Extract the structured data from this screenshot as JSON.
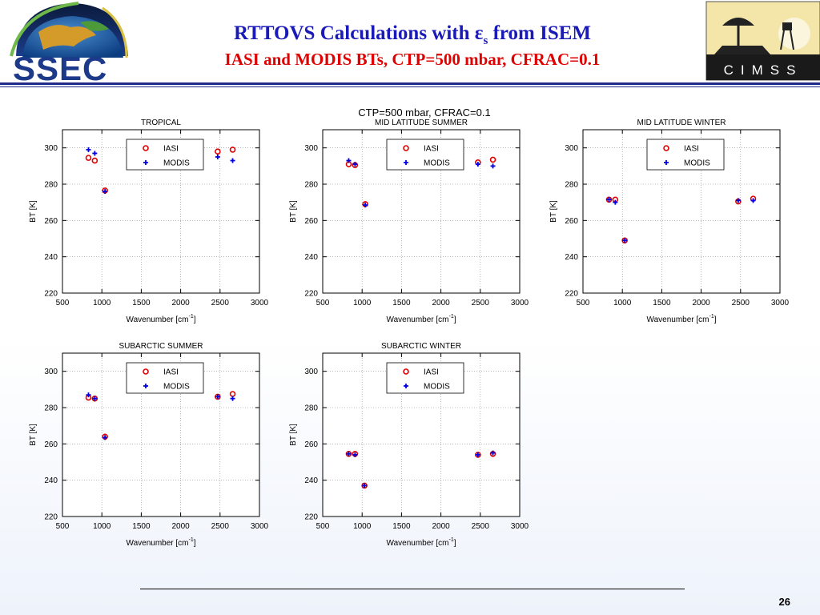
{
  "header": {
    "title_prefix": "RTTOVS Calculations with ",
    "title_eps": "ε",
    "title_eps_sub": "s",
    "title_suffix": " from ISEM",
    "subtitle": "IASI and MODIS BTs, CTP=500 mbar, CFRAC=0.1",
    "logo_left_text": "SSEC",
    "logo_right_text": "CIMSS"
  },
  "overall_title": "CTP=500 mbar, CFRAC=0.1",
  "page_number": "26",
  "colors": {
    "iasi": "#e00000",
    "modis": "#0000e0",
    "title_blue": "#1a1ab8",
    "title_red": "#e00000"
  },
  "chart_data": [
    {
      "type": "scatter",
      "title": "TROPICAL",
      "xlabel": "Wavenumber [cm",
      "xlabel_sup": "-1",
      "xlabel_end": "]",
      "ylabel": "BT [K]",
      "xlim": [
        500,
        3000
      ],
      "ylim": [
        220,
        310
      ],
      "xticks": [
        500,
        1000,
        1500,
        2000,
        2500,
        3000
      ],
      "yticks": [
        220,
        240,
        260,
        280,
        300
      ],
      "grid": true,
      "legend": "top-center",
      "series": [
        {
          "name": "IASI",
          "marker": "circle",
          "x": [
            830,
            910,
            1040,
            2470,
            2660
          ],
          "y": [
            294.5,
            293,
            276.5,
            298,
            299
          ]
        },
        {
          "name": "MODIS",
          "marker": "plus",
          "x": [
            830,
            910,
            1040,
            2470,
            2660
          ],
          "y": [
            299,
            297,
            276,
            295,
            293
          ]
        }
      ]
    },
    {
      "type": "scatter",
      "title": "MID LATITUDE SUMMER",
      "xlabel": "Wavenumber [cm",
      "xlabel_sup": "-1",
      "xlabel_end": "]",
      "ylabel": "BT [K]",
      "xlim": [
        500,
        3000
      ],
      "ylim": [
        220,
        310
      ],
      "xticks": [
        500,
        1000,
        1500,
        2000,
        2500,
        3000
      ],
      "yticks": [
        220,
        240,
        260,
        280,
        300
      ],
      "grid": true,
      "legend": "top-center",
      "series": [
        {
          "name": "IASI",
          "marker": "circle",
          "x": [
            830,
            910,
            1040,
            2470,
            2660
          ],
          "y": [
            291,
            290.5,
            269,
            292,
            293.5
          ]
        },
        {
          "name": "MODIS",
          "marker": "plus",
          "x": [
            830,
            910,
            1040,
            2470,
            2660
          ],
          "y": [
            293,
            291,
            268.5,
            291,
            290
          ]
        }
      ]
    },
    {
      "type": "scatter",
      "title": "MID LATITUDE WINTER",
      "xlabel": "Wavenumber [cm",
      "xlabel_sup": "-1",
      "xlabel_end": "]",
      "ylabel": "BT [K]",
      "xlim": [
        500,
        3000
      ],
      "ylim": [
        220,
        310
      ],
      "xticks": [
        500,
        1000,
        1500,
        2000,
        2500,
        3000
      ],
      "yticks": [
        220,
        240,
        260,
        280,
        300
      ],
      "grid": true,
      "legend": "top-center",
      "series": [
        {
          "name": "IASI",
          "marker": "circle",
          "x": [
            830,
            910,
            1030,
            2470,
            2660
          ],
          "y": [
            271.5,
            271.5,
            249,
            270.5,
            272
          ]
        },
        {
          "name": "MODIS",
          "marker": "plus",
          "x": [
            830,
            910,
            1030,
            2470,
            2660
          ],
          "y": [
            271.5,
            270,
            249,
            271,
            271
          ]
        }
      ]
    },
    {
      "type": "scatter",
      "title": "SUBARCTIC SUMMER",
      "xlabel": "Wavenumber [cm",
      "xlabel_sup": "-1",
      "xlabel_end": "]",
      "ylabel": "BT [K]",
      "xlim": [
        500,
        3000
      ],
      "ylim": [
        220,
        310
      ],
      "xticks": [
        500,
        1000,
        1500,
        2000,
        2500,
        3000
      ],
      "yticks": [
        220,
        240,
        260,
        280,
        300
      ],
      "grid": true,
      "legend": "top-center",
      "series": [
        {
          "name": "IASI",
          "marker": "circle",
          "x": [
            830,
            910,
            1040,
            2470,
            2660
          ],
          "y": [
            285.5,
            285,
            264,
            286,
            287.5
          ]
        },
        {
          "name": "MODIS",
          "marker": "plus",
          "x": [
            830,
            910,
            1040,
            2470,
            2660
          ],
          "y": [
            287,
            285,
            263.5,
            286,
            285
          ]
        }
      ]
    },
    {
      "type": "scatter",
      "title": "SUBARCTIC WINTER",
      "xlabel": "Wavenumber [cm",
      "xlabel_sup": "-1",
      "xlabel_end": "]",
      "ylabel": "BT [K]",
      "xlim": [
        500,
        3000
      ],
      "ylim": [
        220,
        310
      ],
      "xticks": [
        500,
        1000,
        1500,
        2000,
        2500,
        3000
      ],
      "yticks": [
        220,
        240,
        260,
        280,
        300
      ],
      "grid": true,
      "legend": "top-center",
      "series": [
        {
          "name": "IASI",
          "marker": "circle",
          "x": [
            830,
            910,
            1030,
            2470,
            2660
          ],
          "y": [
            254.5,
            254.5,
            237,
            254,
            254.5
          ]
        },
        {
          "name": "MODIS",
          "marker": "plus",
          "x": [
            830,
            910,
            1030,
            2470,
            2660
          ],
          "y": [
            254.5,
            254,
            237,
            254,
            255
          ]
        }
      ]
    }
  ]
}
